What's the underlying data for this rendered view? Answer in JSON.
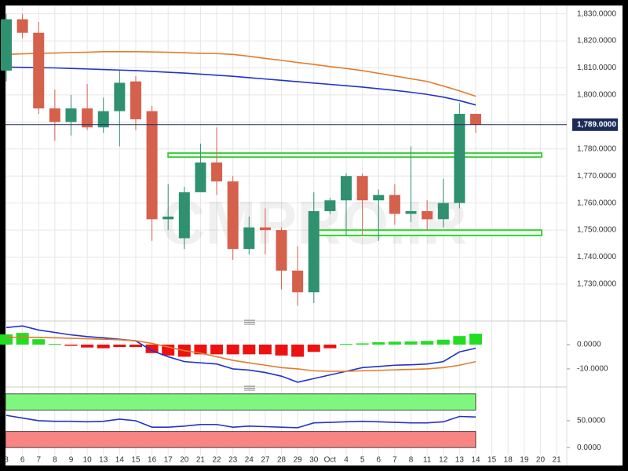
{
  "chart_data": [
    {
      "type": "candlestick",
      "watermark": "CMPRO.IR",
      "categories": [
        "3",
        "6",
        "7",
        "8",
        "9",
        "10",
        "13",
        "14",
        "15",
        "16",
        "17",
        "20",
        "21",
        "22",
        "23",
        "24",
        "27",
        "28",
        "29",
        "30",
        "Oct",
        "4",
        "5",
        "6",
        "7",
        "8",
        "11",
        "12",
        "13",
        "14",
        "15",
        "18",
        "19",
        "20",
        "21"
      ],
      "open": [
        1809,
        1828,
        1823,
        1795,
        1790,
        1795,
        1788,
        1794,
        1805,
        1794,
        1754,
        1747,
        1764,
        1775,
        1768,
        1743,
        1751,
        1750,
        1735,
        1727,
        1757,
        1761,
        1770,
        1761,
        1763,
        1756,
        1757,
        1754,
        1760,
        1793,
        null,
        null,
        null,
        null,
        null
      ],
      "high": [
        1830,
        1830,
        1827,
        1802,
        1800,
        1804,
        1799,
        1809,
        1807,
        1796,
        1767,
        1766,
        1782,
        1788,
        1770,
        1755,
        1758,
        1751,
        1744,
        1764,
        1762,
        1771,
        1771,
        1765,
        1767,
        1781,
        1761,
        1769,
        1797,
        1793,
        null,
        null,
        null,
        null,
        null
      ],
      "low": [
        1805,
        1821,
        1793,
        1783,
        1785,
        1787,
        1786,
        1781,
        1787,
        1746,
        1750,
        1743,
        1765,
        1763,
        1739,
        1741,
        1741,
        1728,
        1722,
        1723,
        1756,
        1748,
        1748,
        1746,
        1752,
        1753,
        1750,
        1751,
        1758,
        1786,
        null,
        null,
        null,
        null,
        null
      ],
      "close": [
        1828,
        1823,
        1795,
        1790,
        1795,
        1788,
        1794,
        1804.5,
        1791,
        1754,
        1755,
        1764,
        1775,
        1768,
        1743,
        1751,
        1750,
        1735,
        1727,
        1757,
        1761,
        1770,
        1761,
        1763,
        1756,
        1757,
        1754,
        1760,
        1793,
        1789,
        null,
        null,
        null,
        null,
        null
      ],
      "up_color": "#2f9170",
      "down_color": "#d5604b",
      "series": [
        {
          "color": "#e37c2c",
          "values": [
            1815,
            1815.2,
            1815.4,
            1815.5,
            1815.7,
            1815.8,
            1816,
            1816,
            1816,
            1815.9,
            1815.8,
            1815.6,
            1815.4,
            1815.3,
            1815,
            1814.3,
            1813.5,
            1812.8,
            1812,
            1811.3,
            1810.5,
            1809.8,
            1809,
            1808,
            1807,
            1806,
            1805,
            1803.3,
            1801.5,
            1799.5,
            null,
            null,
            null,
            null,
            null
          ]
        },
        {
          "color": "#2233cc",
          "values": [
            1810.3,
            1810.2,
            1810.1,
            1810,
            1809.8,
            1809.6,
            1809.4,
            1809.2,
            1809,
            1808.7,
            1808.4,
            1808.1,
            1807.7,
            1807.3,
            1806.9,
            1806.4,
            1805.9,
            1805.4,
            1804.9,
            1804.4,
            1803.9,
            1803.4,
            1802.9,
            1802.3,
            1801.7,
            1801,
            1800.2,
            1799.2,
            1797.9,
            1796.3,
            null,
            null,
            null,
            null,
            null
          ]
        }
      ],
      "zones": [
        {
          "low": 1777,
          "high": 1778.5,
          "start": "17"
        },
        {
          "low": 1748,
          "high": 1750,
          "start": "30"
        }
      ],
      "zone_color": "#3fcf3f",
      "last_price": {
        "value": 1789,
        "label": "1,789.0000"
      },
      "ylim": [
        1717.5,
        1832.8
      ],
      "yticks": [
        {
          "value": 1730,
          "label": "1,730.0000"
        },
        {
          "value": 1740,
          "label": "1,740.0000"
        },
        {
          "value": 1750,
          "label": "1,750.0000"
        },
        {
          "value": 1760,
          "label": "1,760.0000"
        },
        {
          "value": 1770,
          "label": "1,770.0000"
        },
        {
          "value": 1780,
          "label": "1,780.0000"
        },
        {
          "value": 1790,
          "label": "1,790.0000"
        },
        {
          "value": 1800,
          "label": "1,800.0000"
        },
        {
          "value": 1810,
          "label": "1,810.0000"
        },
        {
          "value": 1820,
          "label": "1,820.0000"
        },
        {
          "value": 1830,
          "label": "1,830.0000"
        }
      ],
      "grid": true
    },
    {
      "type": "macd",
      "values": [
        4.2,
        4.8,
        2.2,
        0.3,
        -0.5,
        -1.2,
        -1.5,
        -1,
        -1,
        -3.5,
        -4.5,
        -5,
        -4,
        -4,
        -4,
        -4,
        -4,
        -4.5,
        -5,
        -3,
        -1.5,
        0.3,
        0.5,
        1,
        1.2,
        1.3,
        1.5,
        2,
        3.5,
        4.5,
        null,
        null,
        null,
        null,
        null
      ],
      "pos_color": "#22dd22",
      "neg_color": "#ee1111",
      "series": [
        {
          "color": "#2233cc",
          "values": [
            7,
            7.7,
            6,
            5,
            4,
            3.3,
            2.8,
            2.2,
            1.5,
            -2.5,
            -5,
            -7,
            -7.5,
            -8,
            -10,
            -10.5,
            -11.5,
            -13,
            -15.5,
            -14,
            -12.5,
            -11,
            -9.5,
            -9,
            -8.5,
            -8.3,
            -8,
            -7,
            -3,
            -1.5,
            null,
            null,
            null,
            null,
            null
          ]
        },
        {
          "color": "#e37c2c",
          "values": [
            3,
            3,
            3,
            2.8,
            2.6,
            2.4,
            2.2,
            2,
            1.6,
            0.5,
            -1,
            -2.5,
            -3.5,
            -5,
            -6.5,
            -7.5,
            -8.5,
            -9.5,
            -10,
            -10.8,
            -11,
            -11,
            -10.8,
            -10.6,
            -10.4,
            -10.2,
            -10,
            -9.5,
            -8.5,
            -7,
            null,
            null,
            null,
            null,
            null
          ]
        }
      ],
      "ylim": [
        -16.5,
        8.4
      ],
      "yticks": [
        {
          "value": -10,
          "label": "-10.0000"
        },
        {
          "value": 0,
          "label": "0.0000"
        }
      ]
    },
    {
      "type": "rsi",
      "bands": [
        {
          "from": 70,
          "to": 100,
          "color": "#7ff77f"
        },
        {
          "from": 0,
          "to": 30,
          "color": "#f98484"
        }
      ],
      "series": [
        {
          "color": "#2233cc",
          "values": [
            60,
            55,
            50,
            49,
            49,
            48,
            49,
            53,
            50,
            38,
            38,
            40,
            43,
            43,
            38,
            40,
            39,
            38,
            37,
            46,
            47,
            48,
            49,
            48,
            47,
            46,
            46,
            48,
            58,
            57,
            null,
            null,
            null,
            null,
            null
          ]
        }
      ],
      "ylim": [
        -10,
        107
      ],
      "yticks": [
        {
          "value": 0,
          "label": "0.0000"
        },
        {
          "value": 50,
          "label": "50.0000"
        }
      ]
    }
  ]
}
